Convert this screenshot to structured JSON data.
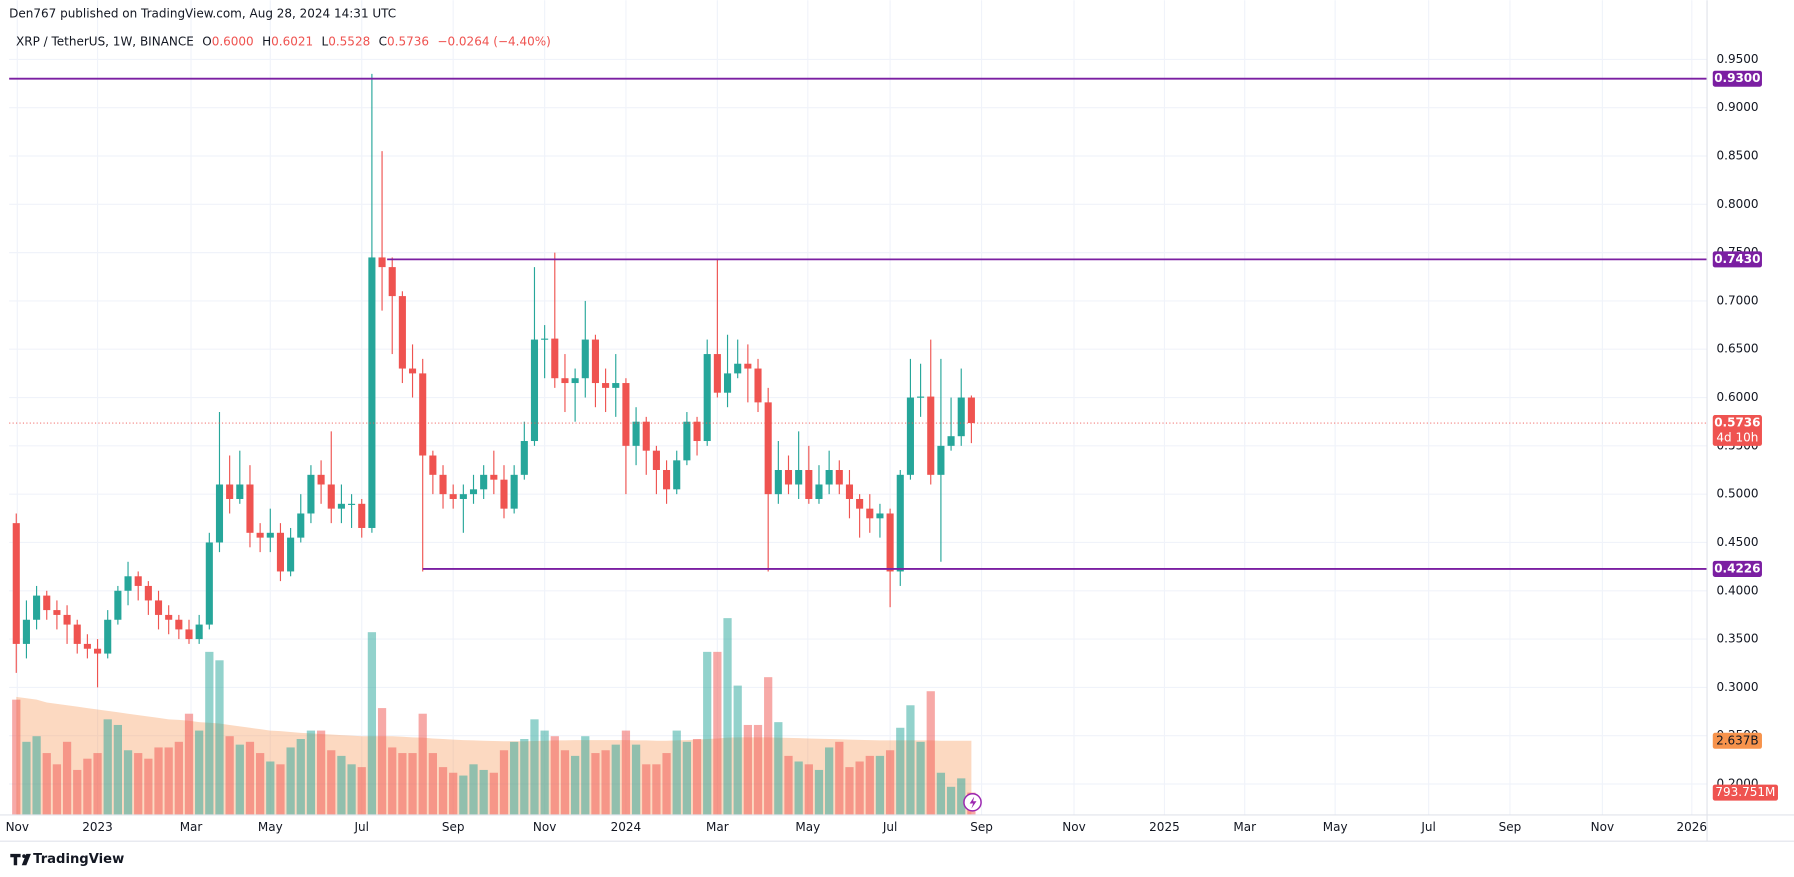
{
  "header": {
    "published": "Den767 published on TradingView.com, Aug 28, 2024 14:31 UTC"
  },
  "chart_data": {
    "type": "candlestick",
    "legend": {
      "symbol": "XRP / TetherUS, 1W, BINANCE",
      "items": [
        {
          "key": "O",
          "text": "0.6000"
        },
        {
          "key": "H",
          "text": "0.6021"
        },
        {
          "key": "L",
          "text": "0.5528"
        },
        {
          "key": "C",
          "text": "0.5736"
        }
      ],
      "change": "−0.0264 (−4.40%)"
    },
    "open": [
      0.47,
      0.345,
      0.37,
      0.395,
      0.38,
      0.375,
      0.365,
      0.345,
      0.34,
      0.335,
      0.37,
      0.4,
      0.415,
      0.405,
      0.39,
      0.375,
      0.37,
      0.36,
      0.35,
      0.365,
      0.45,
      0.51,
      0.495,
      0.51,
      0.46,
      0.455,
      0.46,
      0.42,
      0.455,
      0.48,
      0.52,
      0.51,
      0.485,
      0.49,
      0.49,
      0.465,
      0.745,
      0.735,
      0.705,
      0.63,
      0.625,
      0.54,
      0.52,
      0.5,
      0.495,
      0.5,
      0.505,
      0.52,
      0.515,
      0.485,
      0.52,
      0.555,
      0.66,
      0.661,
      0.62,
      0.615,
      0.62,
      0.66,
      0.615,
      0.61,
      0.615,
      0.55,
      0.575,
      0.545,
      0.525,
      0.505,
      0.535,
      0.575,
      0.555,
      0.645,
      0.605,
      0.625,
      0.635,
      0.63,
      0.595,
      0.5,
      0.525,
      0.51,
      0.525,
      0.495,
      0.51,
      0.525,
      0.51,
      0.495,
      0.485,
      0.475,
      0.48,
      0.42,
      0.52,
      0.6,
      0.601,
      0.52,
      0.55,
      0.56,
      0.6
    ],
    "high": [
      0.48,
      0.39,
      0.405,
      0.4,
      0.39,
      0.385,
      0.37,
      0.355,
      0.35,
      0.38,
      0.405,
      0.43,
      0.42,
      0.41,
      0.4,
      0.385,
      0.375,
      0.37,
      0.375,
      0.46,
      0.585,
      0.54,
      0.545,
      0.53,
      0.47,
      0.485,
      0.47,
      0.465,
      0.5,
      0.53,
      0.535,
      0.565,
      0.51,
      0.5,
      0.495,
      0.935,
      0.855,
      0.745,
      0.71,
      0.655,
      0.64,
      0.545,
      0.53,
      0.51,
      0.51,
      0.52,
      0.53,
      0.545,
      0.53,
      0.53,
      0.575,
      0.735,
      0.675,
      0.75,
      0.645,
      0.63,
      0.7,
      0.665,
      0.63,
      0.645,
      0.62,
      0.59,
      0.58,
      0.55,
      0.535,
      0.545,
      0.585,
      0.58,
      0.66,
      0.743,
      0.665,
      0.66,
      0.655,
      0.64,
      0.61,
      0.555,
      0.54,
      0.565,
      0.55,
      0.53,
      0.545,
      0.535,
      0.525,
      0.5,
      0.5,
      0.49,
      0.485,
      0.525,
      0.64,
      0.635,
      0.66,
      0.64,
      0.6,
      0.63,
      0.6021
    ],
    "low": [
      0.315,
      0.33,
      0.36,
      0.37,
      0.36,
      0.345,
      0.335,
      0.33,
      0.3,
      0.33,
      0.365,
      0.385,
      0.39,
      0.375,
      0.36,
      0.355,
      0.35,
      0.345,
      0.345,
      0.36,
      0.44,
      0.48,
      0.49,
      0.445,
      0.44,
      0.44,
      0.41,
      0.415,
      0.45,
      0.47,
      0.49,
      0.47,
      0.47,
      0.465,
      0.455,
      0.46,
      0.69,
      0.645,
      0.615,
      0.6,
      0.42,
      0.5,
      0.485,
      0.485,
      0.46,
      0.49,
      0.495,
      0.5,
      0.475,
      0.48,
      0.515,
      0.55,
      0.62,
      0.61,
      0.585,
      0.575,
      0.6,
      0.59,
      0.585,
      0.58,
      0.5,
      0.53,
      0.52,
      0.5,
      0.49,
      0.5,
      0.53,
      0.54,
      0.55,
      0.6,
      0.59,
      0.62,
      0.595,
      0.585,
      0.42,
      0.49,
      0.5,
      0.495,
      0.49,
      0.49,
      0.5,
      0.5,
      0.475,
      0.455,
      0.46,
      0.455,
      0.383,
      0.405,
      0.515,
      0.58,
      0.51,
      0.43,
      0.545,
      0.55,
      0.5528
    ],
    "close": [
      0.345,
      0.37,
      0.395,
      0.38,
      0.375,
      0.365,
      0.345,
      0.34,
      0.335,
      0.37,
      0.4,
      0.415,
      0.405,
      0.39,
      0.375,
      0.37,
      0.36,
      0.35,
      0.365,
      0.45,
      0.51,
      0.495,
      0.51,
      0.46,
      0.455,
      0.46,
      0.42,
      0.455,
      0.48,
      0.52,
      0.51,
      0.485,
      0.49,
      0.49,
      0.465,
      0.745,
      0.735,
      0.705,
      0.63,
      0.625,
      0.54,
      0.52,
      0.5,
      0.495,
      0.5,
      0.505,
      0.52,
      0.515,
      0.485,
      0.52,
      0.555,
      0.66,
      0.661,
      0.62,
      0.615,
      0.62,
      0.66,
      0.615,
      0.61,
      0.615,
      0.55,
      0.575,
      0.545,
      0.525,
      0.505,
      0.535,
      0.575,
      0.555,
      0.645,
      0.605,
      0.625,
      0.635,
      0.63,
      0.595,
      0.5,
      0.525,
      0.51,
      0.525,
      0.495,
      0.51,
      0.525,
      0.51,
      0.495,
      0.485,
      0.475,
      0.48,
      0.42,
      0.52,
      0.6,
      0.601,
      0.52,
      0.55,
      0.56,
      0.6,
      0.5736
    ],
    "up_color": "#26a69a",
    "down_color": "#ef5350",
    "volume": {
      "values": [
        4.1,
        2.6,
        2.8,
        2.2,
        1.8,
        2.6,
        1.6,
        2.0,
        2.2,
        3.4,
        3.2,
        2.3,
        2.2,
        2.0,
        2.4,
        2.4,
        2.6,
        3.6,
        3.0,
        5.8,
        5.5,
        2.8,
        2.5,
        2.6,
        2.2,
        1.9,
        1.8,
        2.4,
        2.7,
        3.0,
        3.0,
        2.3,
        2.1,
        1.8,
        1.7,
        6.5,
        3.8,
        2.4,
        2.2,
        2.2,
        3.6,
        2.2,
        1.7,
        1.5,
        1.4,
        1.8,
        1.6,
        1.5,
        2.3,
        2.6,
        2.7,
        3.4,
        3.0,
        2.8,
        2.3,
        2.1,
        2.8,
        2.2,
        2.3,
        2.5,
        3.0,
        2.5,
        1.8,
        1.8,
        2.2,
        3.0,
        2.6,
        2.7,
        5.8,
        5.8,
        7.0,
        4.6,
        3.2,
        3.2,
        4.9,
        3.3,
        2.1,
        1.9,
        1.8,
        1.6,
        2.4,
        2.6,
        1.7,
        1.9,
        2.1,
        2.1,
        2.3,
        3.1,
        3.9,
        2.6,
        4.4,
        1.5,
        1.0,
        1.3,
        0.793751
      ],
      "last_label": "793.751M",
      "ma": [
        4.2,
        4.15,
        4.1,
        4.0,
        3.95,
        3.9,
        3.85,
        3.8,
        3.75,
        3.7,
        3.65,
        3.6,
        3.55,
        3.5,
        3.45,
        3.4,
        3.38,
        3.35,
        3.3,
        3.28,
        3.25,
        3.2,
        3.15,
        3.1,
        3.05,
        3.0,
        2.98,
        2.95,
        2.92,
        2.9,
        2.88,
        2.86,
        2.84,
        2.82,
        2.8,
        2.8,
        2.8,
        2.8,
        2.78,
        2.76,
        2.75,
        2.72,
        2.7,
        2.68,
        2.66,
        2.65,
        2.64,
        2.63,
        2.62,
        2.62,
        2.62,
        2.63,
        2.64,
        2.65,
        2.65,
        2.66,
        2.66,
        2.66,
        2.66,
        2.66,
        2.66,
        2.65,
        2.65,
        2.64,
        2.64,
        2.65,
        2.66,
        2.68,
        2.7,
        2.72,
        2.75,
        2.76,
        2.76,
        2.76,
        2.76,
        2.75,
        2.74,
        2.73,
        2.72,
        2.71,
        2.7,
        2.69,
        2.68,
        2.67,
        2.66,
        2.65,
        2.65,
        2.65,
        2.65,
        2.65,
        2.65,
        2.64,
        2.64,
        2.64,
        2.637
      ],
      "ma_last_label": "2.637B",
      "ma_color": "#f7934c"
    },
    "xlim": [
      -0.7,
      166.4
    ],
    "xticks": [
      {
        "value": 0.1,
        "label": "Nov"
      },
      {
        "value": 8.0,
        "label": "2023"
      },
      {
        "value": 17.2,
        "label": "Mar"
      },
      {
        "value": 25.0,
        "label": "May"
      },
      {
        "value": 34.0,
        "label": "Jul"
      },
      {
        "value": 43.0,
        "label": "Sep"
      },
      {
        "value": 52.0,
        "label": "Nov"
      },
      {
        "value": 60.0,
        "label": "2024"
      },
      {
        "value": 69.0,
        "label": "Mar"
      },
      {
        "value": 77.9,
        "label": "May"
      },
      {
        "value": 86.0,
        "label": "Jul"
      },
      {
        "value": 95.0,
        "label": "Sep"
      },
      {
        "value": 104.1,
        "label": "Nov"
      },
      {
        "value": 113.0,
        "label": "2025"
      },
      {
        "value": 120.9,
        "label": "Mar"
      },
      {
        "value": 129.8,
        "label": "May"
      },
      {
        "value": 139.0,
        "label": "Jul"
      },
      {
        "value": 147.0,
        "label": "Sep"
      },
      {
        "value": 156.1,
        "label": "Nov"
      },
      {
        "value": 164.9,
        "label": "2026"
      }
    ],
    "ylim": [
      0.168,
      0.978
    ],
    "yticks": [
      {
        "value": 0.2,
        "label": "0.2000"
      },
      {
        "value": 0.25,
        "label": "0.2500"
      },
      {
        "value": 0.3,
        "label": "0.3000"
      },
      {
        "value": 0.35,
        "label": "0.3500"
      },
      {
        "value": 0.4,
        "label": "0.4000"
      },
      {
        "value": 0.45,
        "label": "0.4500"
      },
      {
        "value": 0.5,
        "label": "0.5000"
      },
      {
        "value": 0.55,
        "label": "0.5500"
      },
      {
        "value": 0.6,
        "label": "0.6000"
      },
      {
        "value": 0.65,
        "label": "0.6500"
      },
      {
        "value": 0.7,
        "label": "0.7000"
      },
      {
        "value": 0.75,
        "label": "0.7500"
      },
      {
        "value": 0.8,
        "label": "0.8000"
      },
      {
        "value": 0.85,
        "label": "0.8500"
      },
      {
        "value": 0.9,
        "label": "0.9000"
      },
      {
        "value": 0.95,
        "label": "0.9500"
      }
    ],
    "grid": true,
    "hlines": [
      {
        "value": 0.93,
        "label": "0.9300"
      },
      {
        "value": 0.743,
        "label": "0.7430",
        "from": 36.5
      },
      {
        "value": 0.4226,
        "from": 40
      }
    ],
    "hline_color": "#7b1fa2",
    "countdown": "4d 10h"
  },
  "footer": {
    "brand": "TradingView"
  }
}
